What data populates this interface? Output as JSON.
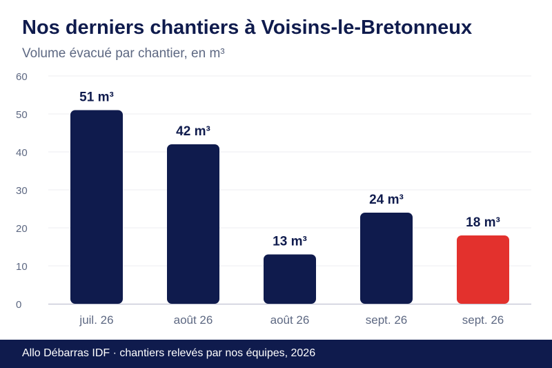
{
  "title": "Nos derniers chantiers à Voisins-le-Bretonneux",
  "subtitle": "Volume évacué par chantier, en m³",
  "footer": "Allo Débarras IDF · chantiers relevés par nos équipes, 2026",
  "colors": {
    "bar": "#0f1b4d",
    "highlight": "#e3312d",
    "grid": "#ececf2",
    "axis": "#c9cbd8",
    "tick_text": "#5d6882",
    "label_text": "#0f1b4d"
  },
  "chart_data": {
    "type": "bar",
    "categories": [
      "juil. 26",
      "août 26",
      "août 26",
      "sept. 26",
      "sept. 26"
    ],
    "values": [
      51,
      42,
      13,
      24,
      18
    ],
    "value_labels": [
      "51 m³",
      "42 m³",
      "13 m³",
      "24 m³",
      "18 m³"
    ],
    "highlight_index": 4,
    "ylim": [
      0,
      60
    ],
    "yticks": [
      0,
      10,
      20,
      30,
      40,
      50,
      60
    ],
    "grid": true,
    "legend": "none"
  }
}
